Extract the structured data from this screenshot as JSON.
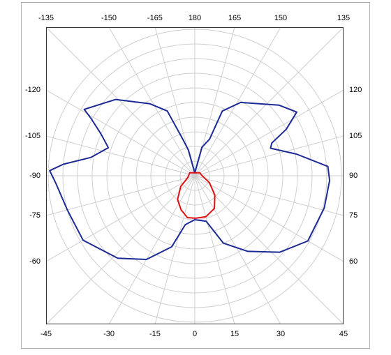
{
  "chart_data": {
    "type": "polar",
    "thetaticks": [
      -165,
      -150,
      -135,
      -120,
      -105,
      -90,
      -75,
      -60,
      -45,
      -30,
      -15,
      0,
      15,
      30,
      45,
      60,
      75,
      90,
      105,
      120,
      135,
      150,
      165,
      180
    ],
    "rlim": [
      0,
      10
    ],
    "rticks": [
      1,
      2,
      3,
      4,
      5,
      6,
      7,
      8,
      9,
      10
    ],
    "grid": true,
    "series": [
      {
        "color": "#1c2a96",
        "theta": [
          -180,
          -166,
          -162,
          -157,
          -148,
          -134,
          -121,
          -119,
          -114,
          -108,
          -100,
          -95,
          -92,
          -87,
          -75,
          -60,
          -43,
          -30,
          -18,
          -11,
          0,
          14,
          23,
          35,
          48,
          60,
          76,
          88,
          94,
          102,
          110,
          113,
          117,
          122,
          130,
          148,
          157,
          158,
          166,
          180
        ],
        "values": [
          0.2,
          1.8,
          2.6,
          4.8,
          5.8,
          7.5,
          8.8,
          8.1,
          7.0,
          6.2,
          7.2,
          9.0,
          9.9,
          9.5,
          9.0,
          8.8,
          7.7,
          6.6,
          5.1,
          3.4,
          3.0,
          3.2,
          5.0,
          6.3,
          7.8,
          8.9,
          9.1,
          9.2,
          9.1,
          7.1,
          5.5,
          5.7,
          7.0,
          8.2,
          7.5,
          5.9,
          4.8,
          2.7,
          2.0,
          0.2
        ]
      },
      {
        "color": "#e01010",
        "theta": [
          -180,
          -120,
          -75,
          -53,
          -36,
          -22,
          -10,
          1,
          15,
          31,
          46,
          65,
          90,
          120,
          180
        ],
        "values": [
          0.2,
          0.4,
          0.5,
          1.2,
          2.0,
          2.5,
          2.9,
          2.9,
          2.9,
          2.6,
          1.9,
          1.1,
          0.5,
          0.4,
          0.2
        ]
      }
    ]
  }
}
